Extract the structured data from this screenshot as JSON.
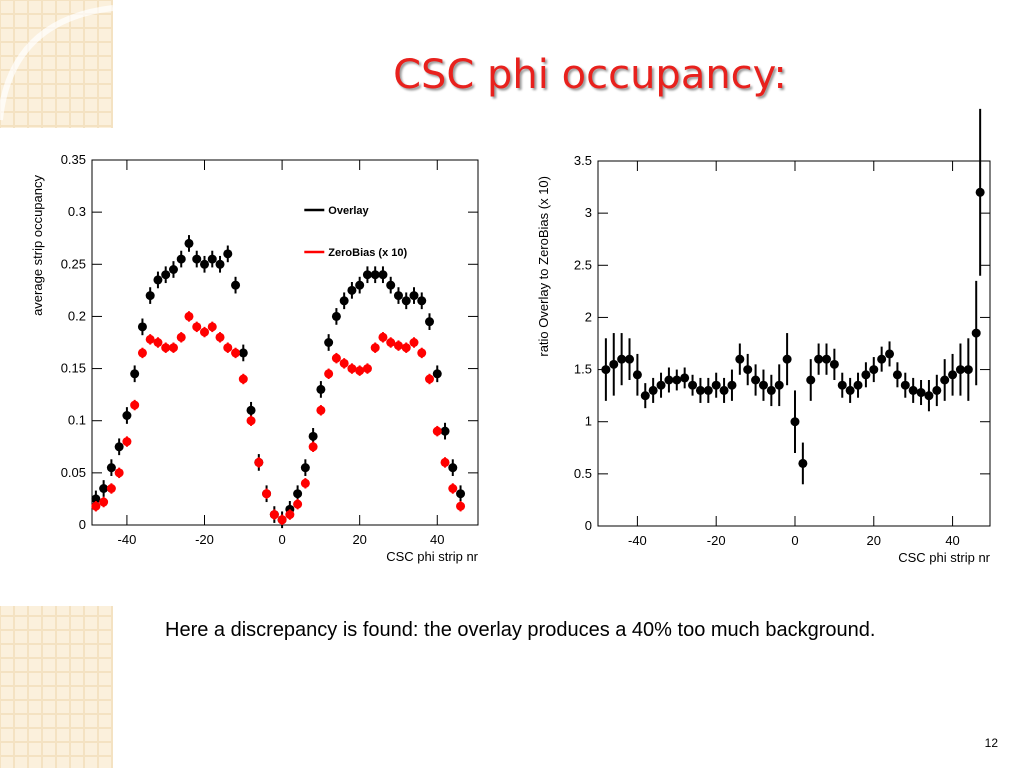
{
  "title": "CSC phi occupancy:",
  "chart_data": [
    {
      "type": "scatter",
      "x_label": "CSC phi strip nr",
      "y_label": "average strip occupancy",
      "xlim": [
        -49,
        50.5
      ],
      "xticks": [
        -40,
        -20,
        0,
        20,
        40
      ],
      "ylim": [
        0,
        0.35
      ],
      "yticks": [
        0,
        0.05,
        0.1,
        0.15,
        0.2,
        0.25,
        0.3,
        0.35
      ],
      "legend": "upper right",
      "x": [
        -48,
        -46,
        -44,
        -42,
        -40,
        -38,
        -36,
        -34,
        -32,
        -30,
        -28,
        -26,
        -24,
        -22,
        -20,
        -18,
        -16,
        -14,
        -12,
        -10,
        -8,
        -6,
        -4,
        -2,
        0,
        2,
        4,
        6,
        8,
        10,
        12,
        14,
        16,
        18,
        20,
        22,
        24,
        26,
        28,
        30,
        32,
        34,
        36,
        38,
        40,
        42,
        44,
        46
      ],
      "series": [
        {
          "name": "Overlay",
          "color": "#000000",
          "values": [
            0.025,
            0.035,
            0.055,
            0.075,
            0.105,
            0.145,
            0.19,
            0.22,
            0.235,
            0.24,
            0.245,
            0.255,
            0.27,
            0.255,
            0.25,
            0.255,
            0.25,
            0.26,
            0.23,
            0.165,
            0.11,
            0.06,
            0.03,
            0.01,
            0.005,
            0.015,
            0.03,
            0.055,
            0.085,
            0.13,
            0.175,
            0.2,
            0.215,
            0.225,
            0.23,
            0.24,
            0.24,
            0.24,
            0.23,
            0.22,
            0.215,
            0.22,
            0.215,
            0.195,
            0.145,
            0.09,
            0.055,
            0.03
          ],
          "errors": [
            0.008,
            0.008,
            0.008,
            0.008,
            0.008,
            0.008,
            0.008,
            0.008,
            0.008,
            0.008,
            0.008,
            0.008,
            0.008,
            0.008,
            0.008,
            0.008,
            0.008,
            0.008,
            0.008,
            0.008,
            0.008,
            0.008,
            0.008,
            0.008,
            0.008,
            0.008,
            0.008,
            0.008,
            0.008,
            0.008,
            0.008,
            0.008,
            0.008,
            0.008,
            0.008,
            0.008,
            0.008,
            0.008,
            0.008,
            0.008,
            0.008,
            0.008,
            0.008,
            0.008,
            0.008,
            0.008,
            0.008,
            0.008
          ]
        },
        {
          "name": "ZeroBias (x 10)",
          "color": "#ff0000",
          "values": [
            0.018,
            0.022,
            0.035,
            0.05,
            0.08,
            0.115,
            0.165,
            0.178,
            0.175,
            0.17,
            0.17,
            0.18,
            0.2,
            0.19,
            0.185,
            0.19,
            0.18,
            0.17,
            0.165,
            0.14,
            0.1,
            0.06,
            0.03,
            0.01,
            0.005,
            0.01,
            0.02,
            0.04,
            0.075,
            0.11,
            0.145,
            0.16,
            0.155,
            0.15,
            0.148,
            0.15,
            0.17,
            0.18,
            0.175,
            0.172,
            0.17,
            0.175,
            0.165,
            0.14,
            0.09,
            0.06,
            0.035,
            0.018
          ],
          "errors": [
            0.005,
            0.005,
            0.005,
            0.005,
            0.005,
            0.005,
            0.005,
            0.005,
            0.005,
            0.005,
            0.005,
            0.005,
            0.005,
            0.005,
            0.005,
            0.005,
            0.005,
            0.005,
            0.005,
            0.005,
            0.005,
            0.005,
            0.005,
            0.005,
            0.005,
            0.005,
            0.005,
            0.005,
            0.005,
            0.005,
            0.005,
            0.005,
            0.005,
            0.005,
            0.005,
            0.005,
            0.005,
            0.005,
            0.005,
            0.005,
            0.005,
            0.005,
            0.005,
            0.005,
            0.005,
            0.005,
            0.005,
            0.005
          ]
        }
      ]
    },
    {
      "type": "scatter",
      "x_label": "CSC phi strip nr",
      "y_label": "ratio Overlay to ZeroBias (x 10)",
      "xlim": [
        -50,
        49.5
      ],
      "xticks": [
        -40,
        -20,
        0,
        20,
        40
      ],
      "ylim": [
        0,
        3.5
      ],
      "yticks": [
        0,
        0.5,
        1,
        1.5,
        2,
        2.5,
        3,
        3.5
      ],
      "x": [
        -48,
        -46,
        -44,
        -42,
        -40,
        -38,
        -36,
        -34,
        -32,
        -30,
        -28,
        -26,
        -24,
        -22,
        -20,
        -18,
        -16,
        -14,
        -12,
        -10,
        -8,
        -6,
        -4,
        -2,
        0,
        2,
        4,
        6,
        8,
        10,
        12,
        14,
        16,
        18,
        20,
        22,
        24,
        26,
        28,
        30,
        32,
        34,
        36,
        38,
        40,
        42,
        44,
        46,
        47
      ],
      "series": [
        {
          "color": "#000000",
          "values": [
            1.5,
            1.55,
            1.6,
            1.6,
            1.45,
            1.25,
            1.3,
            1.35,
            1.4,
            1.4,
            1.42,
            1.35,
            1.3,
            1.3,
            1.35,
            1.3,
            1.35,
            1.6,
            1.5,
            1.4,
            1.35,
            1.3,
            1.35,
            1.6,
            1.0,
            0.6,
            1.4,
            1.6,
            1.6,
            1.55,
            1.35,
            1.3,
            1.35,
            1.45,
            1.5,
            1.6,
            1.65,
            1.45,
            1.35,
            1.3,
            1.28,
            1.25,
            1.3,
            1.4,
            1.45,
            1.5,
            1.5,
            1.85,
            3.2
          ],
          "errors": [
            0.3,
            0.3,
            0.25,
            0.2,
            0.2,
            0.12,
            0.12,
            0.12,
            0.12,
            0.1,
            0.1,
            0.1,
            0.12,
            0.12,
            0.12,
            0.12,
            0.15,
            0.15,
            0.15,
            0.15,
            0.15,
            0.15,
            0.2,
            0.25,
            0.3,
            0.2,
            0.2,
            0.15,
            0.15,
            0.15,
            0.12,
            0.12,
            0.12,
            0.12,
            0.12,
            0.12,
            0.12,
            0.12,
            0.12,
            0.12,
            0.12,
            0.15,
            0.15,
            0.2,
            0.2,
            0.25,
            0.3,
            0.5,
            0.8
          ]
        }
      ]
    }
  ],
  "body": "Here a discrepancy is found: the overlay produces a 40% too much background.",
  "page_number": "12"
}
